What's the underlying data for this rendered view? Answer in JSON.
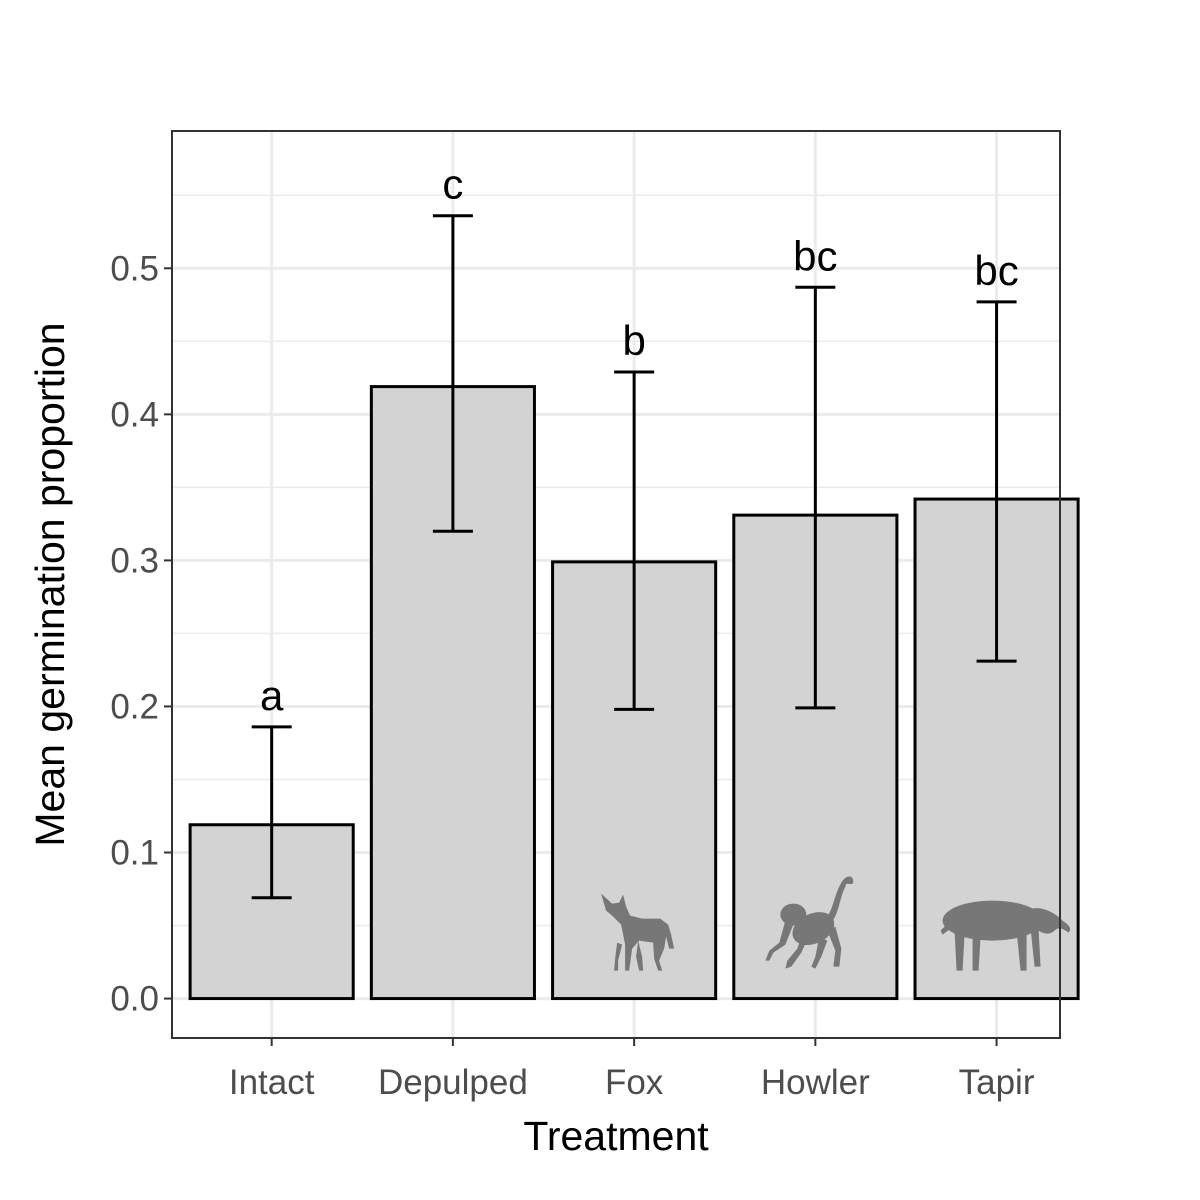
{
  "chart_data": {
    "type": "bar",
    "xlabel": "Treatment",
    "ylabel": "Mean germination proportion",
    "categories": [
      "Intact",
      "Depulped",
      "Fox",
      "Howler",
      "Tapir"
    ],
    "values": [
      0.119,
      0.419,
      0.299,
      0.331,
      0.342
    ],
    "error_lower": [
      0.069,
      0.32,
      0.198,
      0.199,
      0.231
    ],
    "error_upper": [
      0.186,
      0.536,
      0.429,
      0.487,
      0.477
    ],
    "significance_labels": [
      "a",
      "c",
      "b",
      "bc",
      "bc"
    ],
    "animal_icons": [
      "",
      "",
      "fox-icon",
      "howler-monkey-icon",
      "tapir-icon"
    ],
    "yticks": [
      "0.0",
      "0.1",
      "0.2",
      "0.3",
      "0.4",
      "0.5"
    ],
    "ylim": [
      -0.027,
      0.594
    ],
    "grid": true,
    "legend": "none",
    "colors": {
      "bar_fill": "#d3d3d3",
      "bar_stroke": "#000000",
      "grid": "#ebebeb",
      "panel_border": "#333333",
      "icon": "#777777"
    }
  }
}
